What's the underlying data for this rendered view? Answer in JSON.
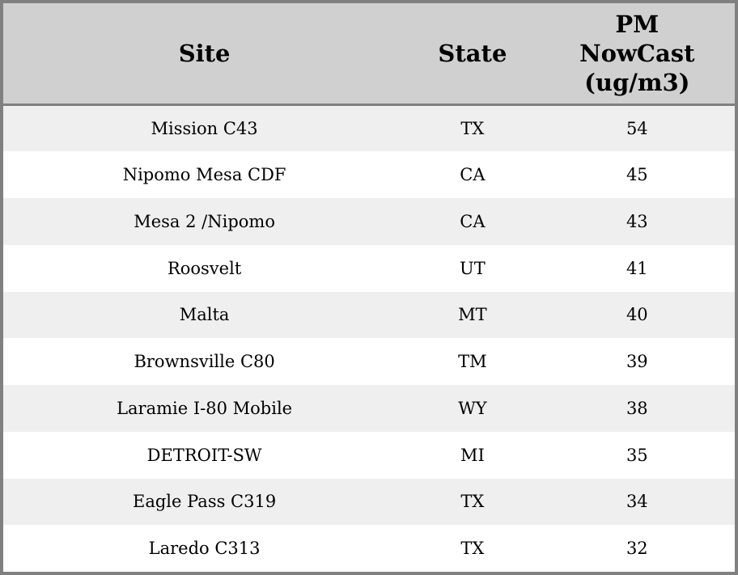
{
  "table": {
    "columns": [
      {
        "label": "Site"
      },
      {
        "label": "State"
      },
      {
        "label": "PM\nNowCast\n(ug/m3)"
      }
    ],
    "rows": [
      {
        "site": "Mission C43",
        "state": "TX",
        "pm_nowcast": "54"
      },
      {
        "site": "Nipomo Mesa CDF",
        "state": "CA",
        "pm_nowcast": "45"
      },
      {
        "site": "Mesa 2 /Nipomo",
        "state": "CA",
        "pm_nowcast": "43"
      },
      {
        "site": "Roosvelt",
        "state": "UT",
        "pm_nowcast": "41"
      },
      {
        "site": "Malta",
        "state": "MT",
        "pm_nowcast": "40"
      },
      {
        "site": "Brownsville C80",
        "state": "TM",
        "pm_nowcast": "39"
      },
      {
        "site": "Laramie I-80 Mobile",
        "state": "WY",
        "pm_nowcast": "38"
      },
      {
        "site": "DETROIT-SW",
        "state": "MI",
        "pm_nowcast": "35"
      },
      {
        "site": "Eagle Pass C319",
        "state": "TX",
        "pm_nowcast": "34"
      },
      {
        "site": "Laredo C313",
        "state": "TX",
        "pm_nowcast": "32"
      }
    ]
  },
  "colors": {
    "header_bg": "#d0d0d0",
    "stripe_bg": "#efefef",
    "row_bg": "#ffffff",
    "border": "#808080",
    "text": "#000000"
  }
}
